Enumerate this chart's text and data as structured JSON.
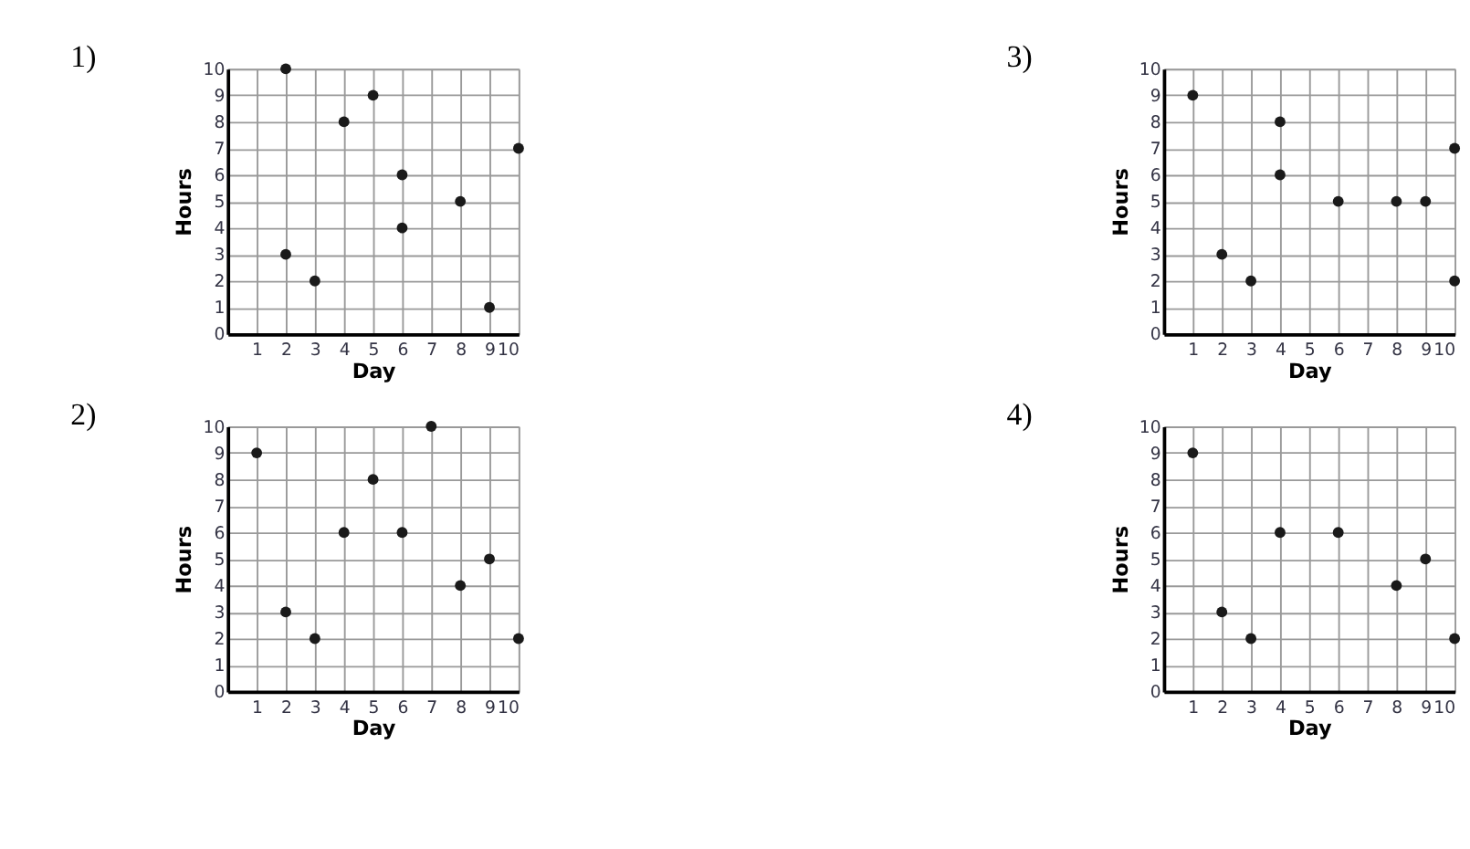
{
  "chart_data": [
    {
      "type": "scatter",
      "title": "1)",
      "xlabel": "Day",
      "ylabel": "Hours",
      "x": [
        2,
        2,
        3,
        4,
        5,
        6,
        6,
        8,
        9,
        10
      ],
      "values": [
        10,
        3,
        2,
        8,
        9,
        6,
        4,
        5,
        1,
        7
      ],
      "color": "#1a1a1a",
      "marker": "circle",
      "grid": true,
      "xlim": [
        0,
        10
      ],
      "ylim": [
        0,
        10
      ],
      "xticks": [
        1,
        2,
        3,
        4,
        5,
        6,
        7,
        8,
        9,
        10
      ],
      "yticks": [
        0,
        1,
        2,
        3,
        4,
        5,
        6,
        7,
        8,
        9,
        10
      ]
    },
    {
      "type": "scatter",
      "title": "3)",
      "xlabel": "Day",
      "ylabel": "Hours",
      "x": [
        1,
        2,
        3,
        4,
        4,
        6,
        8,
        9,
        10,
        10
      ],
      "values": [
        9,
        3,
        2,
        8,
        6,
        5,
        5,
        5,
        7,
        2
      ],
      "color": "#1a1a1a",
      "marker": "circle",
      "grid": true,
      "xlim": [
        0,
        10
      ],
      "ylim": [
        0,
        10
      ],
      "xticks": [
        1,
        2,
        3,
        4,
        5,
        6,
        7,
        8,
        9,
        10
      ],
      "yticks": [
        0,
        1,
        2,
        3,
        4,
        5,
        6,
        7,
        8,
        9,
        10
      ]
    },
    {
      "type": "scatter",
      "title": "2)",
      "xlabel": "Day",
      "ylabel": "Hours",
      "x": [
        1,
        2,
        3,
        4,
        5,
        6,
        7,
        8,
        9,
        10
      ],
      "values": [
        9,
        3,
        2,
        6,
        8,
        6,
        10,
        4,
        5,
        2
      ],
      "color": "#1a1a1a",
      "marker": "circle",
      "grid": true,
      "xlim": [
        0,
        10
      ],
      "ylim": [
        0,
        10
      ],
      "xticks": [
        1,
        2,
        3,
        4,
        5,
        6,
        7,
        8,
        9,
        10
      ],
      "yticks": [
        0,
        1,
        2,
        3,
        4,
        5,
        6,
        7,
        8,
        9,
        10
      ]
    },
    {
      "type": "scatter",
      "title": "4)",
      "xlabel": "Day",
      "ylabel": "Hours",
      "x": [
        1,
        2,
        3,
        4,
        6,
        8,
        9,
        10
      ],
      "values": [
        9,
        3,
        2,
        6,
        6,
        4,
        5,
        2
      ],
      "color": "#1a1a1a",
      "marker": "circle",
      "grid": true,
      "xlim": [
        0,
        10
      ],
      "ylim": [
        0,
        10
      ],
      "xticks": [
        1,
        2,
        3,
        4,
        5,
        6,
        7,
        8,
        9,
        10
      ],
      "yticks": [
        0,
        1,
        2,
        3,
        4,
        5,
        6,
        7,
        8,
        9,
        10
      ]
    }
  ]
}
